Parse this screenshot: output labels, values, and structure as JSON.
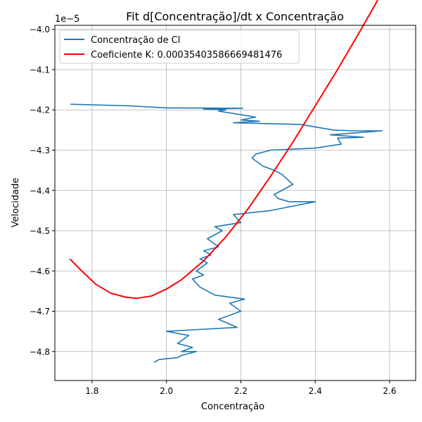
{
  "chart_data": {
    "type": "line",
    "title": "Fit d[Concentração]/dt x Concentração",
    "xlabel": "Concentração",
    "ylabel": "Velocidade",
    "y_offset_text": "1e−5",
    "xlim": [
      1.7,
      2.67
    ],
    "ylim": [
      -4.872,
      -3.99
    ],
    "x_ticks": [
      1.8,
      2.0,
      2.2,
      2.4,
      2.6
    ],
    "x_tick_labels": [
      "1.8",
      "2.0",
      "2.2",
      "2.4",
      "2.6"
    ],
    "y_ticks": [
      -4.8,
      -4.7,
      -4.6,
      -4.5,
      -4.4,
      -4.3,
      -4.2,
      -4.1,
      -4.0
    ],
    "y_tick_labels": [
      "−4.8",
      "−4.7",
      "−4.6",
      "−4.5",
      "−4.4",
      "−4.3",
      "−4.2",
      "−4.1",
      "−4.0"
    ],
    "grid": true,
    "legend_position": "top-left",
    "series": [
      {
        "name": "Concentração de Cl",
        "color": "#1f77b4",
        "x": [
          1.742,
          1.9,
          2.0,
          2.205,
          2.1,
          2.16,
          2.14,
          2.2,
          2.24,
          2.2,
          2.25,
          2.18,
          2.36,
          2.45,
          2.5,
          2.58,
          2.44,
          2.53,
          2.46,
          2.47,
          2.4,
          2.35,
          2.28,
          2.24,
          2.23,
          2.26,
          2.29,
          2.31,
          2.34,
          2.33,
          2.29,
          2.3,
          2.33,
          2.4,
          2.28,
          2.18,
          2.2,
          2.13,
          2.15,
          2.11,
          2.14,
          2.1,
          2.12,
          2.09,
          2.11,
          2.08,
          2.1,
          2.07,
          2.09,
          2.13,
          2.21,
          2.17,
          2.2,
          2.14,
          2.19,
          2.0,
          2.06,
          2.03,
          2.07,
          2.04,
          2.08,
          2.04,
          2.03,
          1.98,
          1.967
        ],
        "y": [
          -4.186,
          -4.19,
          -4.195,
          -4.196,
          -4.198,
          -4.2,
          -4.203,
          -4.212,
          -4.218,
          -4.225,
          -4.228,
          -4.232,
          -4.236,
          -4.25,
          -4.252,
          -4.252,
          -4.262,
          -4.268,
          -4.27,
          -4.285,
          -4.295,
          -4.297,
          -4.3,
          -4.31,
          -4.32,
          -4.34,
          -4.35,
          -4.36,
          -4.385,
          -4.39,
          -4.41,
          -4.42,
          -4.428,
          -4.428,
          -4.45,
          -4.46,
          -4.48,
          -4.49,
          -4.5,
          -4.52,
          -4.54,
          -4.55,
          -4.56,
          -4.57,
          -4.58,
          -4.6,
          -4.61,
          -4.62,
          -4.64,
          -4.66,
          -4.67,
          -4.68,
          -4.7,
          -4.72,
          -4.74,
          -4.75,
          -4.76,
          -4.78,
          -4.79,
          -4.8,
          -4.8,
          -4.81,
          -4.815,
          -4.82,
          -4.827
        ]
      },
      {
        "name": "Coeficiente K: 0.00035403586669481476",
        "color": "#ff0000",
        "x": [
          1.74,
          1.77,
          1.81,
          1.85,
          1.89,
          1.92,
          1.96,
          2.0,
          2.04,
          2.1,
          2.16,
          2.22,
          2.28,
          2.34,
          2.4,
          2.46,
          2.52,
          2.583
        ],
        "y": [
          -4.57,
          -4.598,
          -4.633,
          -4.655,
          -4.665,
          -4.668,
          -4.662,
          -4.645,
          -4.622,
          -4.575,
          -4.515,
          -4.445,
          -4.365,
          -4.28,
          -4.19,
          -4.1,
          -4.005,
          -3.903
        ]
      }
    ]
  }
}
